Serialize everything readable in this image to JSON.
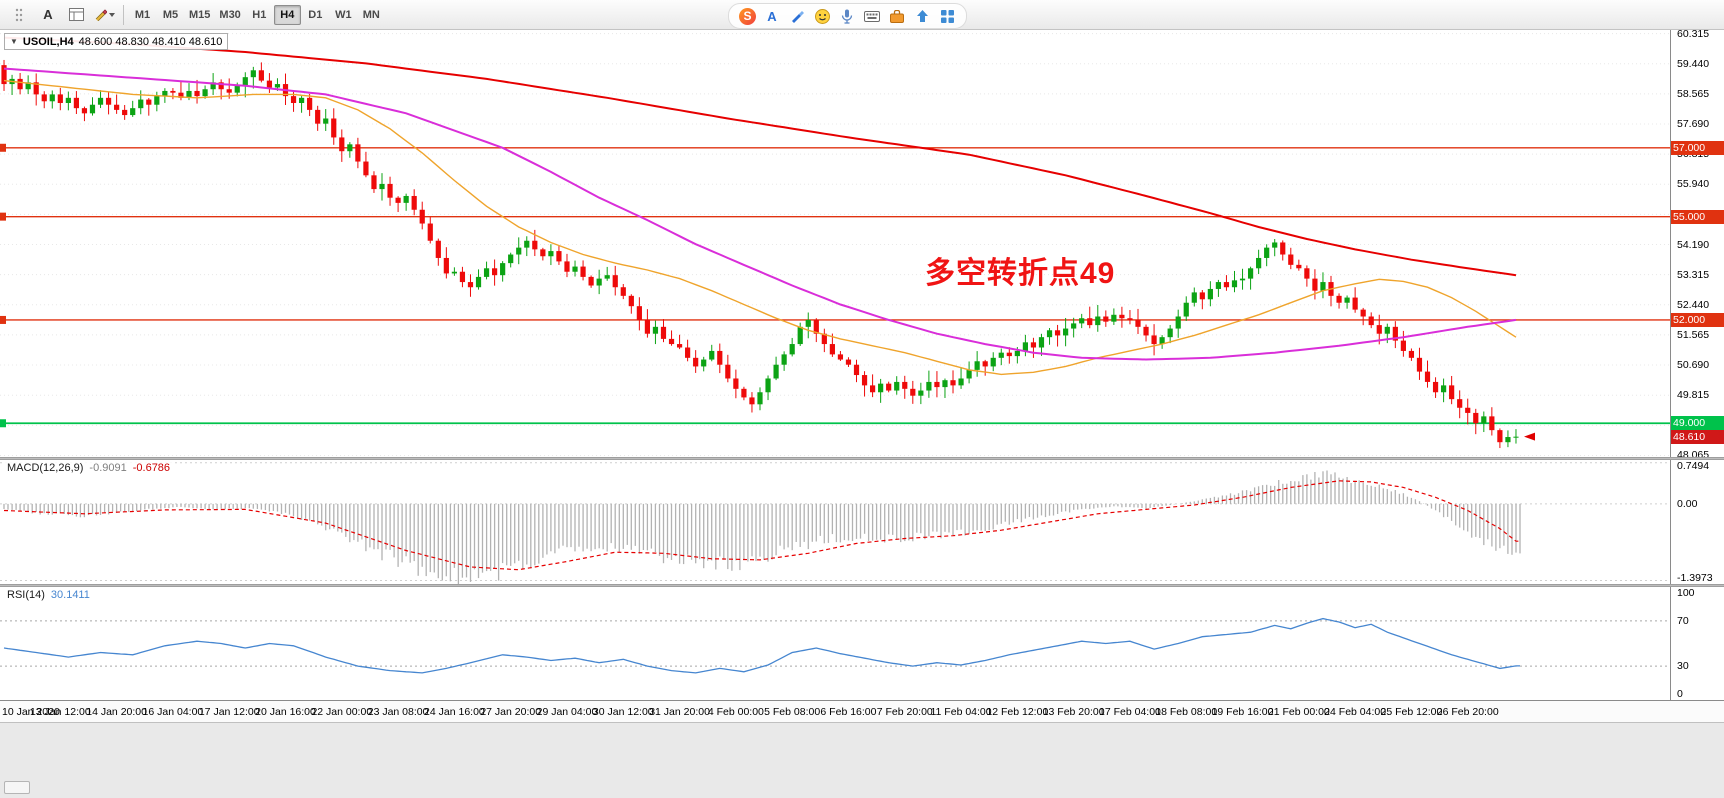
{
  "toolbar": {
    "left_tools": [
      {
        "name": "toolbar-grip",
        "label": ""
      },
      {
        "name": "text-tool",
        "label": "A"
      },
      {
        "name": "objects-list",
        "label": ""
      },
      {
        "name": "draw-tools",
        "label": ""
      }
    ],
    "timeframes": [
      "M1",
      "M5",
      "M15",
      "M30",
      "H1",
      "H4",
      "D1",
      "W1",
      "MN"
    ],
    "active_timeframe": "H4",
    "ime_tray": [
      "sogou-logo",
      "letter-a",
      "brush",
      "smiley",
      "microphone",
      "keyboard",
      "toolbox",
      "up-arrow",
      "app-grid"
    ],
    "ime_letter_a": "A",
    "sogou_letter": "S"
  },
  "chart": {
    "symbol_period": "USOIL,H4",
    "ohlc": "48.600 48.830 48.410 48.610",
    "collapse_marker": "▼",
    "annotation": {
      "text": "多空转折点49",
      "color": "#f01414"
    },
    "price_axis": {
      "ticks": [
        "60.315",
        "59.440",
        "58.565",
        "57.690",
        "56.815",
        "55.940",
        "55.065",
        "54.190",
        "53.315",
        "52.440",
        "51.565",
        "50.690",
        "49.815",
        "48.940",
        "48.065"
      ],
      "badges": [
        {
          "value": "57.000",
          "price": 57.0,
          "bg": "#e03210",
          "fg": "#ffffff"
        },
        {
          "value": "55.000",
          "price": 55.0,
          "bg": "#e03210",
          "fg": "#ffffff"
        },
        {
          "value": "52.000",
          "price": 52.0,
          "bg": "#e03210",
          "fg": "#ffffff"
        },
        {
          "value": "49.000",
          "price": 49.0,
          "bg": "#00c24b",
          "fg": "#ffffff"
        },
        {
          "value": "48.610",
          "price": 48.61,
          "bg": "#d01818",
          "fg": "#ffffff"
        }
      ]
    },
    "hlines": [
      {
        "price": 57.0,
        "color": "#e03210",
        "width": 1.4
      },
      {
        "price": 55.0,
        "color": "#e03210",
        "width": 1.4
      },
      {
        "price": 52.0,
        "color": "#e03210",
        "width": 1.4
      },
      {
        "price": 49.0,
        "color": "#00c24b",
        "width": 1.8
      }
    ],
    "last_price": 48.61
  },
  "indicators": {
    "macd": {
      "label": "MACD(12,26,9)",
      "value_main": "-0.9091",
      "value_signal": "-0.6786",
      "axis": [
        "0.7494",
        "0.00",
        "-1.3973"
      ]
    },
    "rsi": {
      "label": "RSI(14)",
      "value": "30.1411",
      "axis": [
        "100",
        "70",
        "30",
        "0"
      ],
      "levels": [
        70,
        30
      ]
    }
  },
  "time_axis": {
    "label_step": 7,
    "labels": [
      "10 Jan 2020",
      "13 Jan 12:00",
      "14 Jan 20:00",
      "16 Jan 04:00",
      "17 Jan 12:00",
      "20 Jan 16:00",
      "22 Jan 00:00",
      "23 Jan 08:00",
      "24 Jan 16:00",
      "27 Jan 20:00",
      "29 Jan 04:00",
      "30 Jan 12:00",
      "31 Jan 20:00",
      "4 Feb 00:00",
      "5 Feb 08:00",
      "6 Feb 16:00",
      "7 Feb 20:00",
      "11 Feb 04:00",
      "12 Feb 12:00",
      "13 Feb 20:00",
      "17 Feb 04:00",
      "18 Feb 08:00",
      "19 Feb 16:00",
      "21 Feb 00:00",
      "24 Feb 04:00",
      "25 Feb 12:00",
      "26 Feb 20:00"
    ]
  },
  "chart_data": {
    "type": "candlestick",
    "symbol": "USOIL",
    "timeframe": "H4",
    "price_range": [
      48.02,
      60.42
    ],
    "first_open": 59.4,
    "closes": [
      58.85,
      59.0,
      58.7,
      58.9,
      58.55,
      58.35,
      58.55,
      58.3,
      58.45,
      58.15,
      58.0,
      58.25,
      58.45,
      58.25,
      58.1,
      57.95,
      58.15,
      58.4,
      58.25,
      58.5,
      58.65,
      58.6,
      58.45,
      58.65,
      58.5,
      58.7,
      58.9,
      58.7,
      58.6,
      58.8,
      59.05,
      59.25,
      58.95,
      58.75,
      58.85,
      58.5,
      58.3,
      58.45,
      58.1,
      57.7,
      57.85,
      57.3,
      56.9,
      57.1,
      56.6,
      56.2,
      55.8,
      55.95,
      55.55,
      55.4,
      55.6,
      55.2,
      54.8,
      54.3,
      53.8,
      53.35,
      53.4,
      53.1,
      52.95,
      53.25,
      53.5,
      53.3,
      53.65,
      53.9,
      54.1,
      54.3,
      54.05,
      53.85,
      54.0,
      53.7,
      53.4,
      53.55,
      53.25,
      53.0,
      53.2,
      53.3,
      52.95,
      52.7,
      52.4,
      52.0,
      51.6,
      51.8,
      51.45,
      51.3,
      51.2,
      50.9,
      50.65,
      50.85,
      51.1,
      50.7,
      50.3,
      50.0,
      49.75,
      49.55,
      49.9,
      50.3,
      50.7,
      51.0,
      51.3,
      51.8,
      52.0,
      51.6,
      51.3,
      51.0,
      50.85,
      50.7,
      50.4,
      50.1,
      49.9,
      50.15,
      49.95,
      50.2,
      50.0,
      49.8,
      49.95,
      50.2,
      50.05,
      50.25,
      50.1,
      50.3,
      50.55,
      50.8,
      50.65,
      50.9,
      51.05,
      50.95,
      51.1,
      51.35,
      51.2,
      51.5,
      51.7,
      51.55,
      51.75,
      51.9,
      52.05,
      51.85,
      52.1,
      51.95,
      52.15,
      52.05,
      52.0,
      51.8,
      51.55,
      51.3,
      51.5,
      51.75,
      52.1,
      52.5,
      52.8,
      52.6,
      52.9,
      53.1,
      52.95,
      53.15,
      53.2,
      53.5,
      53.8,
      54.1,
      54.25,
      53.9,
      53.6,
      53.5,
      53.2,
      52.85,
      53.1,
      52.7,
      52.5,
      52.65,
      52.3,
      52.1,
      51.85,
      51.6,
      51.8,
      51.4,
      51.1,
      50.9,
      50.5,
      50.2,
      49.9,
      50.1,
      49.7,
      49.45,
      49.3,
      49.0,
      49.2,
      48.8,
      48.45,
      48.6,
      48.61
    ],
    "wick_overrides": {
      "0": [
        59.55,
        58.65
      ],
      "31": [
        59.35,
        58.72
      ],
      "158": [
        54.35,
        53.85
      ],
      "186": [
        48.85,
        48.28
      ],
      "188": [
        48.83,
        48.41
      ]
    },
    "ma_red": [
      [
        0,
        60.2
      ],
      [
        15,
        60.02
      ],
      [
        30,
        59.78
      ],
      [
        45,
        59.45
      ],
      [
        60,
        59.0
      ],
      [
        75,
        58.45
      ],
      [
        90,
        57.85
      ],
      [
        105,
        57.3
      ],
      [
        120,
        56.8
      ],
      [
        132,
        56.2
      ],
      [
        142,
        55.6
      ],
      [
        150,
        55.1
      ],
      [
        156,
        54.7
      ],
      [
        162,
        54.35
      ],
      [
        168,
        54.05
      ],
      [
        175,
        53.75
      ],
      [
        182,
        53.5
      ],
      [
        188,
        53.3
      ]
    ],
    "ma_magenta": [
      [
        0,
        59.3
      ],
      [
        15,
        59.05
      ],
      [
        30,
        58.8
      ],
      [
        40,
        58.55
      ],
      [
        50,
        58.0
      ],
      [
        56,
        57.5
      ],
      [
        62,
        57.0
      ],
      [
        68,
        56.3
      ],
      [
        74,
        55.55
      ],
      [
        80,
        54.9
      ],
      [
        86,
        54.2
      ],
      [
        92,
        53.6
      ],
      [
        98,
        53.0
      ],
      [
        104,
        52.45
      ],
      [
        110,
        52.0
      ],
      [
        116,
        51.6
      ],
      [
        122,
        51.3
      ],
      [
        128,
        51.05
      ],
      [
        134,
        50.9
      ],
      [
        142,
        50.85
      ],
      [
        150,
        50.9
      ],
      [
        158,
        51.05
      ],
      [
        166,
        51.25
      ],
      [
        174,
        51.5
      ],
      [
        182,
        51.8
      ],
      [
        188,
        52.0
      ]
    ],
    "ma_orange": [
      [
        0,
        58.95
      ],
      [
        8,
        58.75
      ],
      [
        16,
        58.55
      ],
      [
        24,
        58.45
      ],
      [
        31,
        58.55
      ],
      [
        36,
        58.55
      ],
      [
        40,
        58.45
      ],
      [
        44,
        58.1
      ],
      [
        48,
        57.55
      ],
      [
        52,
        56.85
      ],
      [
        56,
        56.05
      ],
      [
        60,
        55.3
      ],
      [
        64,
        54.7
      ],
      [
        68,
        54.25
      ],
      [
        72,
        53.9
      ],
      [
        76,
        53.65
      ],
      [
        80,
        53.45
      ],
      [
        84,
        53.2
      ],
      [
        88,
        52.85
      ],
      [
        92,
        52.45
      ],
      [
        96,
        52.05
      ],
      [
        100,
        51.7
      ],
      [
        104,
        51.45
      ],
      [
        108,
        51.25
      ],
      [
        112,
        51.05
      ],
      [
        116,
        50.8
      ],
      [
        120,
        50.55
      ],
      [
        124,
        50.42
      ],
      [
        128,
        50.48
      ],
      [
        132,
        50.65
      ],
      [
        136,
        50.9
      ],
      [
        140,
        51.1
      ],
      [
        144,
        51.3
      ],
      [
        148,
        51.55
      ],
      [
        152,
        51.85
      ],
      [
        156,
        52.15
      ],
      [
        160,
        52.5
      ],
      [
        164,
        52.85
      ],
      [
        168,
        53.05
      ],
      [
        171,
        53.18
      ],
      [
        174,
        53.12
      ],
      [
        177,
        52.95
      ],
      [
        180,
        52.65
      ],
      [
        183,
        52.25
      ],
      [
        186,
        51.8
      ],
      [
        188,
        51.5
      ]
    ],
    "macd": {
      "range": [
        -1.46,
        0.8
      ],
      "histogram_anchors": [
        [
          0,
          -0.1
        ],
        [
          5,
          -0.18
        ],
        [
          10,
          -0.22
        ],
        [
          14,
          -0.15
        ],
        [
          18,
          -0.1
        ],
        [
          22,
          -0.06
        ],
        [
          26,
          -0.1
        ],
        [
          30,
          -0.08
        ],
        [
          34,
          -0.15
        ],
        [
          38,
          -0.3
        ],
        [
          42,
          -0.55
        ],
        [
          46,
          -0.85
        ],
        [
          50,
          -1.1
        ],
        [
          54,
          -1.3
        ],
        [
          58,
          -1.35
        ],
        [
          62,
          -1.22
        ],
        [
          66,
          -1.02
        ],
        [
          70,
          -0.85
        ],
        [
          74,
          -0.75
        ],
        [
          78,
          -0.8
        ],
        [
          82,
          -0.95
        ],
        [
          86,
          -1.05
        ],
        [
          90,
          -1.1
        ],
        [
          94,
          -1.0
        ],
        [
          98,
          -0.8
        ],
        [
          102,
          -0.65
        ],
        [
          106,
          -0.6
        ],
        [
          110,
          -0.62
        ],
        [
          114,
          -0.6
        ],
        [
          118,
          -0.55
        ],
        [
          122,
          -0.45
        ],
        [
          126,
          -0.32
        ],
        [
          130,
          -0.2
        ],
        [
          134,
          -0.1
        ],
        [
          138,
          -0.05
        ],
        [
          142,
          -0.08
        ],
        [
          146,
          0.0
        ],
        [
          150,
          0.1
        ],
        [
          154,
          0.22
        ],
        [
          158,
          0.38
        ],
        [
          162,
          0.5
        ],
        [
          164,
          0.55
        ],
        [
          166,
          0.5
        ],
        [
          168,
          0.42
        ],
        [
          170,
          0.35
        ],
        [
          172,
          0.28
        ],
        [
          174,
          0.18
        ],
        [
          176,
          0.05
        ],
        [
          178,
          -0.12
        ],
        [
          180,
          -0.32
        ],
        [
          182,
          -0.5
        ],
        [
          184,
          -0.68
        ],
        [
          186,
          -0.82
        ],
        [
          188,
          -0.91
        ]
      ],
      "signal_anchors": [
        [
          0,
          -0.12
        ],
        [
          10,
          -0.18
        ],
        [
          20,
          -0.11
        ],
        [
          30,
          -0.1
        ],
        [
          40,
          -0.35
        ],
        [
          50,
          -0.85
        ],
        [
          58,
          -1.15
        ],
        [
          64,
          -1.2
        ],
        [
          70,
          -1.05
        ],
        [
          76,
          -0.88
        ],
        [
          82,
          -0.9
        ],
        [
          88,
          -1.0
        ],
        [
          94,
          -1.02
        ],
        [
          100,
          -0.9
        ],
        [
          106,
          -0.72
        ],
        [
          112,
          -0.63
        ],
        [
          118,
          -0.58
        ],
        [
          124,
          -0.48
        ],
        [
          130,
          -0.33
        ],
        [
          136,
          -0.18
        ],
        [
          142,
          -0.1
        ],
        [
          148,
          -0.02
        ],
        [
          154,
          0.12
        ],
        [
          160,
          0.3
        ],
        [
          166,
          0.42
        ],
        [
          170,
          0.4
        ],
        [
          174,
          0.3
        ],
        [
          178,
          0.12
        ],
        [
          182,
          -0.12
        ],
        [
          186,
          -0.45
        ],
        [
          188,
          -0.68
        ]
      ]
    },
    "rsi": {
      "range": [
        0,
        100
      ],
      "anchors": [
        [
          0,
          46
        ],
        [
          4,
          42
        ],
        [
          8,
          38
        ],
        [
          12,
          42
        ],
        [
          16,
          40
        ],
        [
          20,
          48
        ],
        [
          24,
          52
        ],
        [
          27,
          50
        ],
        [
          30,
          46
        ],
        [
          33,
          50
        ],
        [
          36,
          48
        ],
        [
          40,
          38
        ],
        [
          44,
          30
        ],
        [
          48,
          26
        ],
        [
          52,
          24
        ],
        [
          55,
          28
        ],
        [
          58,
          33
        ],
        [
          62,
          40
        ],
        [
          65,
          38
        ],
        [
          68,
          35
        ],
        [
          71,
          37
        ],
        [
          74,
          33
        ],
        [
          77,
          36
        ],
        [
          80,
          30
        ],
        [
          83,
          26
        ],
        [
          86,
          24
        ],
        [
          89,
          28
        ],
        [
          92,
          25
        ],
        [
          95,
          31
        ],
        [
          98,
          42
        ],
        [
          101,
          46
        ],
        [
          104,
          41
        ],
        [
          107,
          37
        ],
        [
          110,
          33
        ],
        [
          113,
          30
        ],
        [
          116,
          33
        ],
        [
          119,
          31
        ],
        [
          122,
          35
        ],
        [
          125,
          40
        ],
        [
          128,
          44
        ],
        [
          131,
          48
        ],
        [
          134,
          52
        ],
        [
          137,
          50
        ],
        [
          140,
          52
        ],
        [
          143,
          45
        ],
        [
          146,
          50
        ],
        [
          149,
          56
        ],
        [
          152,
          58
        ],
        [
          155,
          60
        ],
        [
          158,
          66
        ],
        [
          160,
          63
        ],
        [
          162,
          68
        ],
        [
          164,
          72
        ],
        [
          166,
          69
        ],
        [
          168,
          64
        ],
        [
          170,
          67
        ],
        [
          172,
          60
        ],
        [
          174,
          55
        ],
        [
          176,
          50
        ],
        [
          178,
          45
        ],
        [
          180,
          40
        ],
        [
          182,
          36
        ],
        [
          184,
          32
        ],
        [
          186,
          28
        ],
        [
          188,
          30.14
        ]
      ]
    },
    "colors": {
      "up": "#0ca314",
      "down": "#ee0a0a",
      "ma_red": "#e60000",
      "ma_magenta": "#d92ed9",
      "ma_orange": "#efa42c",
      "macd_hist": "#b2b2b2",
      "macd_signal": "#e60000",
      "rsi_line": "#4686d0",
      "grid": "#e8e8e8"
    }
  }
}
